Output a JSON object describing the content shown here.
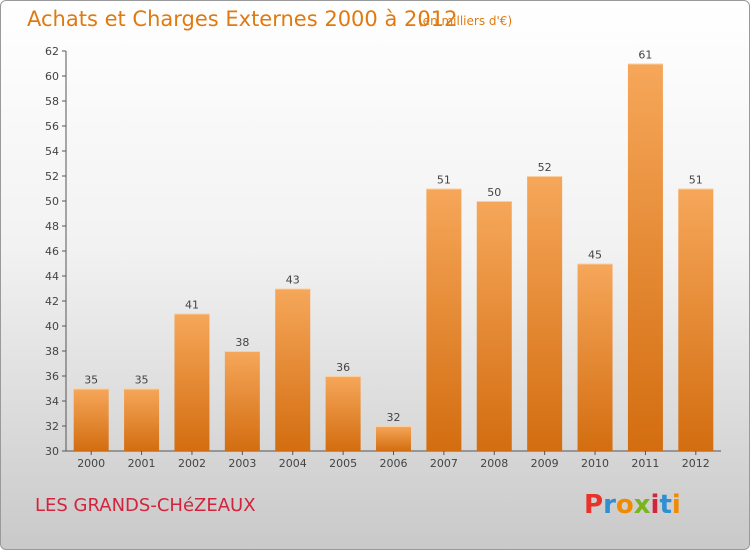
{
  "title": "Achats et Charges Externes 2000 à 2012",
  "subtitle": "(en milliers d'€)",
  "commune": "LES GRANDS-CHéZEAUX",
  "logo": {
    "letters": [
      "P",
      "r",
      "o",
      "x",
      "i",
      "t",
      "i"
    ],
    "colors": [
      "#e8322b",
      "#2e8fd3",
      "#f08a00",
      "#7ab51d",
      "#d4233c",
      "#2e8fd3",
      "#f08a00"
    ]
  },
  "colors": {
    "bar_top": "#f6a75a",
    "bar_bottom": "#d36d10",
    "accent": "#e07a10"
  },
  "chart_data": {
    "type": "bar",
    "categories": [
      "2000",
      "2001",
      "2002",
      "2003",
      "2004",
      "2005",
      "2006",
      "2007",
      "2008",
      "2009",
      "2010",
      "2011",
      "2012"
    ],
    "values": [
      35,
      35,
      41,
      38,
      43,
      36,
      32,
      51,
      50,
      52,
      45,
      61,
      51
    ],
    "ylim": [
      30,
      62
    ],
    "yticks": [
      30,
      32,
      34,
      36,
      38,
      40,
      42,
      44,
      46,
      48,
      50,
      52,
      54,
      56,
      58,
      60,
      62
    ],
    "grid": false,
    "data_labels": true
  }
}
